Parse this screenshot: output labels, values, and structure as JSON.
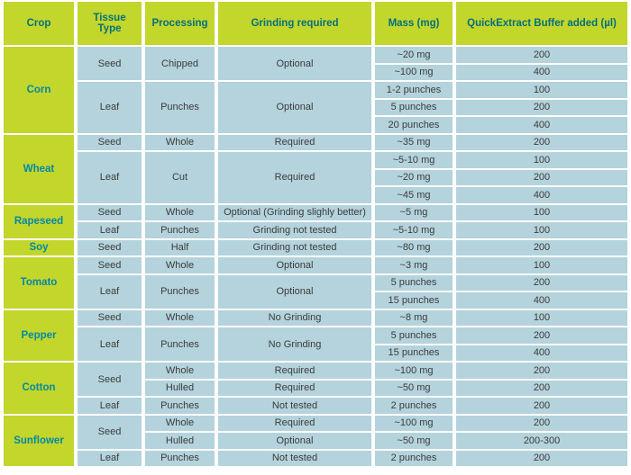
{
  "table": {
    "columns": [
      "Crop",
      "Tissue Type",
      "Processing",
      "Grinding required",
      "Mass (mg)",
      "QuickExtract Buffer added (µl)"
    ],
    "rows": [
      {
        "cells": [
          {
            "k": "crop",
            "t": "Corn",
            "span": 5
          },
          {
            "k": "tissue",
            "t": "Seed",
            "span": 2
          },
          {
            "k": "proc",
            "t": "Chipped",
            "span": 2
          },
          {
            "k": "grind",
            "t": "Optional",
            "span": 2
          },
          {
            "k": "mass",
            "t": "~20 mg"
          },
          {
            "k": "buf",
            "t": "200"
          }
        ]
      },
      {
        "cells": [
          {
            "k": "mass",
            "t": "~100 mg"
          },
          {
            "k": "buf",
            "t": "400"
          }
        ]
      },
      {
        "cells": [
          {
            "k": "tissue",
            "t": "Leaf",
            "span": 3
          },
          {
            "k": "proc",
            "t": "Punches",
            "span": 3
          },
          {
            "k": "grind",
            "t": "Optional",
            "span": 3
          },
          {
            "k": "mass",
            "t": "1-2 punches"
          },
          {
            "k": "buf",
            "t": "100"
          }
        ]
      },
      {
        "cells": [
          {
            "k": "mass",
            "t": "5 punches"
          },
          {
            "k": "buf",
            "t": "200"
          }
        ]
      },
      {
        "cells": [
          {
            "k": "mass",
            "t": "20 punches"
          },
          {
            "k": "buf",
            "t": "400"
          }
        ]
      },
      {
        "cells": [
          {
            "k": "crop",
            "t": "Wheat",
            "span": 4
          },
          {
            "k": "tissue",
            "t": "Seed"
          },
          {
            "k": "proc",
            "t": "Whole"
          },
          {
            "k": "grind",
            "t": "Required"
          },
          {
            "k": "mass",
            "t": "~35 mg"
          },
          {
            "k": "buf",
            "t": "200"
          }
        ]
      },
      {
        "cells": [
          {
            "k": "tissue",
            "t": "Leaf",
            "span": 3
          },
          {
            "k": "proc",
            "t": "Cut",
            "span": 3
          },
          {
            "k": "grind",
            "t": "Required",
            "span": 3
          },
          {
            "k": "mass",
            "t": "~5-10 mg"
          },
          {
            "k": "buf",
            "t": "100"
          }
        ]
      },
      {
        "cells": [
          {
            "k": "mass",
            "t": "~20 mg"
          },
          {
            "k": "buf",
            "t": "200"
          }
        ]
      },
      {
        "cells": [
          {
            "k": "mass",
            "t": "~45 mg"
          },
          {
            "k": "buf",
            "t": "400"
          }
        ]
      },
      {
        "cells": [
          {
            "k": "crop",
            "t": "Rapeseed",
            "span": 2
          },
          {
            "k": "tissue",
            "t": "Seed"
          },
          {
            "k": "proc",
            "t": "Whole"
          },
          {
            "k": "grind",
            "t": "Optional (Grinding slighly better)"
          },
          {
            "k": "mass",
            "t": "~5 mg"
          },
          {
            "k": "buf",
            "t": "100"
          }
        ]
      },
      {
        "cells": [
          {
            "k": "tissue",
            "t": "Leaf"
          },
          {
            "k": "proc",
            "t": "Punches"
          },
          {
            "k": "grind",
            "t": "Grinding not tested"
          },
          {
            "k": "mass",
            "t": "~5-10 mg"
          },
          {
            "k": "buf",
            "t": "100"
          }
        ]
      },
      {
        "cells": [
          {
            "k": "crop",
            "t": "Soy"
          },
          {
            "k": "tissue",
            "t": "Seed"
          },
          {
            "k": "proc",
            "t": "Half"
          },
          {
            "k": "grind",
            "t": "Grinding not tested"
          },
          {
            "k": "mass",
            "t": "~80 mg"
          },
          {
            "k": "buf",
            "t": "200"
          }
        ]
      },
      {
        "cells": [
          {
            "k": "crop",
            "t": "Tomato",
            "span": 3
          },
          {
            "k": "tissue",
            "t": "Seed"
          },
          {
            "k": "proc",
            "t": "Whole"
          },
          {
            "k": "grind",
            "t": "Optional"
          },
          {
            "k": "mass",
            "t": "~3 mg"
          },
          {
            "k": "buf",
            "t": "100"
          }
        ]
      },
      {
        "cells": [
          {
            "k": "tissue",
            "t": "Leaf",
            "span": 2
          },
          {
            "k": "proc",
            "t": "Punches",
            "span": 2
          },
          {
            "k": "grind",
            "t": "Optional",
            "span": 2
          },
          {
            "k": "mass",
            "t": "5 punches"
          },
          {
            "k": "buf",
            "t": "200"
          }
        ]
      },
      {
        "cells": [
          {
            "k": "mass",
            "t": "15 punches"
          },
          {
            "k": "buf",
            "t": "400"
          }
        ]
      },
      {
        "cells": [
          {
            "k": "crop",
            "t": "Pepper",
            "span": 3
          },
          {
            "k": "tissue",
            "t": "Seed"
          },
          {
            "k": "proc",
            "t": "Whole"
          },
          {
            "k": "grind",
            "t": "No Grinding"
          },
          {
            "k": "mass",
            "t": "~8 mg"
          },
          {
            "k": "buf",
            "t": "100"
          }
        ]
      },
      {
        "cells": [
          {
            "k": "tissue",
            "t": "Leaf",
            "span": 2
          },
          {
            "k": "proc",
            "t": "Punches",
            "span": 2
          },
          {
            "k": "grind",
            "t": "No Grinding",
            "span": 2
          },
          {
            "k": "mass",
            "t": "5 punches"
          },
          {
            "k": "buf",
            "t": "200"
          }
        ]
      },
      {
        "cells": [
          {
            "k": "mass",
            "t": "15 punches"
          },
          {
            "k": "buf",
            "t": "400"
          }
        ]
      },
      {
        "cells": [
          {
            "k": "crop",
            "t": "Cotton",
            "span": 3
          },
          {
            "k": "tissue",
            "t": "Seed",
            "span": 2
          },
          {
            "k": "proc",
            "t": "Whole"
          },
          {
            "k": "grind",
            "t": "Required"
          },
          {
            "k": "mass",
            "t": "~100 mg"
          },
          {
            "k": "buf",
            "t": "200"
          }
        ]
      },
      {
        "cells": [
          {
            "k": "proc",
            "t": "Hulled"
          },
          {
            "k": "grind",
            "t": "Required"
          },
          {
            "k": "mass",
            "t": "~50 mg"
          },
          {
            "k": "buf",
            "t": "200"
          }
        ]
      },
      {
        "cells": [
          {
            "k": "tissue",
            "t": "Leaf"
          },
          {
            "k": "proc",
            "t": "Punches"
          },
          {
            "k": "grind",
            "t": "Not tested"
          },
          {
            "k": "mass",
            "t": "2 punches"
          },
          {
            "k": "buf",
            "t": "200"
          }
        ]
      },
      {
        "cells": [
          {
            "k": "crop",
            "t": "Sunflower",
            "span": 3
          },
          {
            "k": "tissue",
            "t": "Seed",
            "span": 2
          },
          {
            "k": "proc",
            "t": "Whole"
          },
          {
            "k": "grind",
            "t": "Required"
          },
          {
            "k": "mass",
            "t": "~100 mg"
          },
          {
            "k": "buf",
            "t": "200"
          }
        ]
      },
      {
        "cells": [
          {
            "k": "proc",
            "t": "Hulled"
          },
          {
            "k": "grind",
            "t": "Optional"
          },
          {
            "k": "mass",
            "t": "~50 mg"
          },
          {
            "k": "buf",
            "t": "200-300"
          }
        ]
      },
      {
        "cells": [
          {
            "k": "tissue",
            "t": "Leaf"
          },
          {
            "k": "proc",
            "t": "Punches"
          },
          {
            "k": "grind",
            "t": "Not tested"
          },
          {
            "k": "mass",
            "t": "2 punches"
          },
          {
            "k": "buf",
            "t": "200"
          }
        ]
      }
    ]
  },
  "colors": {
    "header_background": "#c3d62b",
    "header_text": "#04707c",
    "crop_text": "#0289a6",
    "cell_background": "#b4d3dc",
    "cell_text": "#3b3b3b",
    "gridline": "#ffffff"
  }
}
